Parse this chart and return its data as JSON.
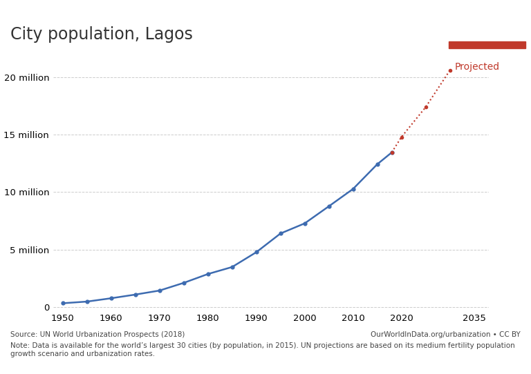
{
  "title": "City population, Lagos",
  "historical_years": [
    1950,
    1955,
    1960,
    1965,
    1970,
    1975,
    1980,
    1985,
    1990,
    1995,
    2000,
    2005,
    2010,
    2015,
    2018
  ],
  "historical_values": [
    0.325,
    0.47,
    0.76,
    1.08,
    1.43,
    2.1,
    2.87,
    3.48,
    4.77,
    6.4,
    7.28,
    8.77,
    10.28,
    12.43,
    13.46
  ],
  "projected_years": [
    2018,
    2020,
    2025,
    2030
  ],
  "projected_values": [
    13.46,
    14.8,
    17.4,
    20.6
  ],
  "line_color": "#3d6bb0",
  "projected_color": "#c0392b",
  "background_color": "#ffffff",
  "grid_color": "#cccccc",
  "ytick_labels": [
    "0",
    "5 million",
    "10 million",
    "15 million",
    "20 million"
  ],
  "ytick_values": [
    0,
    5,
    10,
    15,
    20
  ],
  "xlim": [
    1948,
    2038
  ],
  "ylim": [
    -0.3,
    22.5
  ],
  "xticks": [
    1950,
    1960,
    1970,
    1980,
    1990,
    2000,
    2010,
    2020,
    2035
  ],
  "source_text": "Source: UN World Urbanization Prospects (2018)",
  "url_text": "OurWorldInData.org/urbanization • CC BY",
  "note_text": "Note: Data is available for the world’s largest 30 cities (by population, in 2015). UN projections are based on its medium fertility population\ngrowth scenario and urbanization rates.",
  "owid_bg_color": "#1d3557",
  "owid_red": "#c0392b",
  "projected_label": "Projected",
  "marker_size": 3.5,
  "line_width": 1.8,
  "font_size_title": 17,
  "font_size_axis": 9.5,
  "font_size_note": 7.5
}
